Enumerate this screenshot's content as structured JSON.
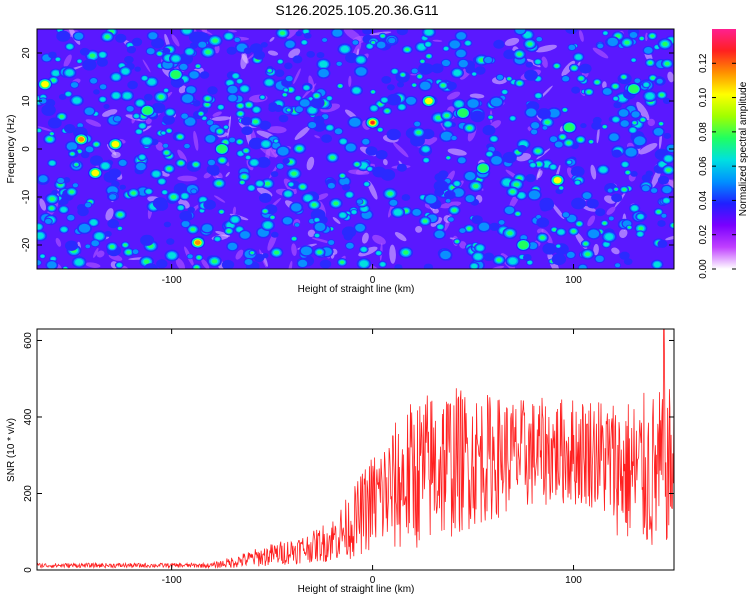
{
  "title": "S126.2025.105.20.36.G11",
  "chart_data": [
    {
      "type": "heatmap",
      "xlabel": "Height of straight line (km)",
      "ylabel": "Frequency (Hz)",
      "xlim": [
        -167,
        150
      ],
      "ylim": [
        -25,
        25
      ],
      "x_ticks": [
        -100,
        0,
        100
      ],
      "y_ticks": [
        -20,
        -10,
        0,
        10,
        20
      ],
      "colorbar": {
        "label": "Normalized spectral amplitude",
        "range": [
          0,
          0.14
        ],
        "ticks": [
          0.0,
          0.02,
          0.04,
          0.06,
          0.08,
          0.1,
          0.12
        ],
        "tick_labels": [
          "0.00",
          "0.02",
          "0.04",
          "0.06",
          "0.08",
          "0.10",
          "0.12"
        ],
        "colors": [
          "#ffffff",
          "#c040ff",
          "#7a00ff",
          "#2020ff",
          "#0090ff",
          "#00e0e0",
          "#20ff60",
          "#a0ff00",
          "#ffff00",
          "#ff9000",
          "#ff2020",
          "#ff2090"
        ]
      },
      "hotspots": [
        {
          "x": 0,
          "y": 5.5,
          "v": 0.13
        },
        {
          "x": -145,
          "y": 2,
          "v": 0.12
        },
        {
          "x": -163,
          "y": 13.5,
          "v": 0.11
        },
        {
          "x": -138,
          "y": -5,
          "v": 0.11
        },
        {
          "x": -128,
          "y": 1,
          "v": 0.1
        },
        {
          "x": -87,
          "y": -19.5,
          "v": 0.12
        },
        {
          "x": 28,
          "y": 10,
          "v": 0.1
        },
        {
          "x": 92,
          "y": -6.5,
          "v": 0.1
        },
        {
          "x": 98,
          "y": 4.5,
          "v": 0.09
        },
        {
          "x": -98,
          "y": 15.5,
          "v": 0.09
        },
        {
          "x": 55,
          "y": -4,
          "v": 0.09
        },
        {
          "x": 75,
          "y": -20,
          "v": 0.09
        },
        {
          "x": -112,
          "y": 8,
          "v": 0.08
        },
        {
          "x": 45,
          "y": 7.5,
          "v": 0.08
        },
        {
          "x": 130,
          "y": 12.5,
          "v": 0.08
        },
        {
          "x": -75,
          "y": 0,
          "v": 0.08
        }
      ]
    },
    {
      "type": "line",
      "xlabel": "Height of straight line (km)",
      "ylabel": "SNR (10 * v/v)",
      "xlim": [
        -167,
        150
      ],
      "ylim": [
        0,
        630
      ],
      "x_ticks": [
        -100,
        0,
        100
      ],
      "y_ticks": [
        0,
        200,
        400,
        600
      ],
      "color": "#ff2020",
      "series_profile": [
        {
          "x": -167,
          "mean": 12,
          "spread": 6
        },
        {
          "x": -80,
          "mean": 12,
          "spread": 6
        },
        {
          "x": -70,
          "mean": 20,
          "spread": 15
        },
        {
          "x": -50,
          "mean": 40,
          "spread": 30
        },
        {
          "x": -30,
          "mean": 60,
          "spread": 40
        },
        {
          "x": -20,
          "mean": 80,
          "spread": 60
        },
        {
          "x": -10,
          "mean": 120,
          "spread": 90
        },
        {
          "x": 0,
          "mean": 180,
          "spread": 130
        },
        {
          "x": 10,
          "mean": 210,
          "spread": 170
        },
        {
          "x": 20,
          "mean": 250,
          "spread": 200
        },
        {
          "x": 35,
          "mean": 280,
          "spread": 210
        },
        {
          "x": 50,
          "mean": 290,
          "spread": 180
        },
        {
          "x": 70,
          "mean": 300,
          "spread": 150
        },
        {
          "x": 90,
          "mean": 310,
          "spread": 140
        },
        {
          "x": 110,
          "mean": 310,
          "spread": 150
        },
        {
          "x": 125,
          "mean": 260,
          "spread": 190
        },
        {
          "x": 140,
          "mean": 250,
          "spread": 220
        },
        {
          "x": 150,
          "mean": 280,
          "spread": 200
        }
      ],
      "peak": {
        "x": 145,
        "y": 630
      }
    }
  ]
}
